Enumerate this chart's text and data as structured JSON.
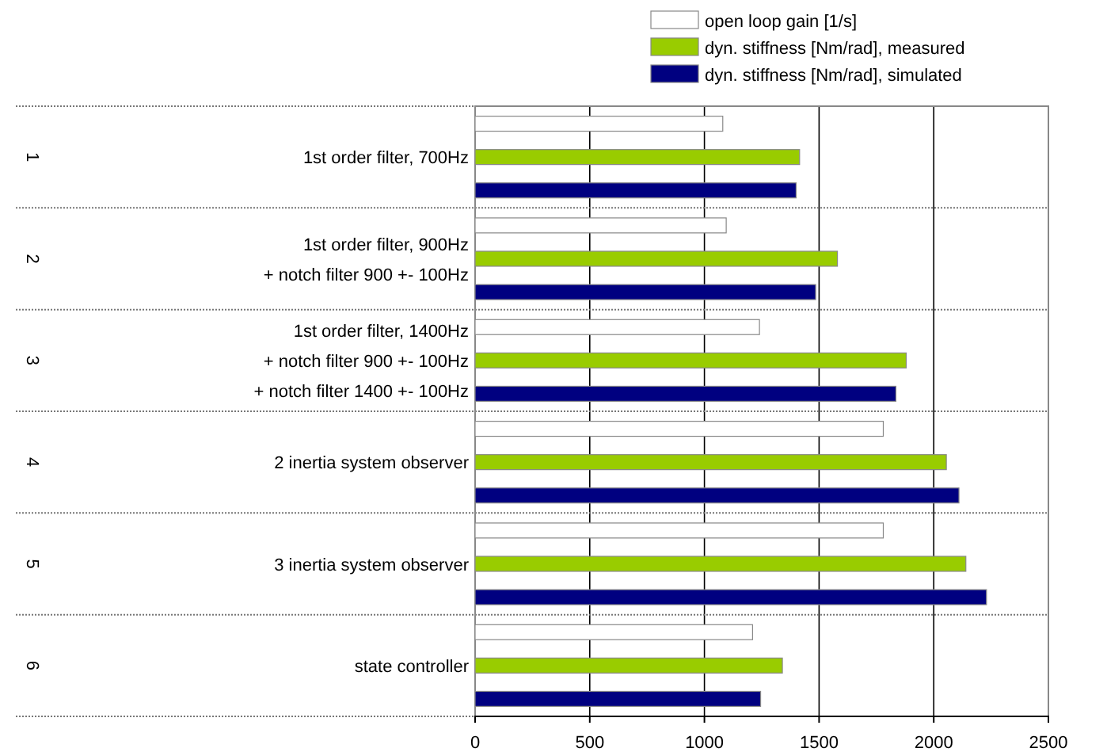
{
  "chart_data": {
    "type": "bar",
    "orientation": "horizontal",
    "categories": [
      "1st order filter, 700Hz",
      "1st order filter, 900Hz\n+ notch filter 900 +- 100Hz",
      "1st order filter, 1400Hz\n+ notch filter 900 +- 100Hz\n+ notch filter 1400 +- 100Hz",
      "2 inertia system observer",
      "3 inertia system observer",
      "state controller"
    ],
    "series": [
      {
        "name": "open loop gain [1/s]",
        "color": "#ffffff",
        "values": [
          1080,
          1095,
          1240,
          1780,
          1780,
          1210
        ]
      },
      {
        "name": "dyn. stiffness [Nm/rad], measured",
        "color": "#99cc00",
        "values": [
          1415,
          1580,
          1880,
          2055,
          2140,
          1340
        ]
      },
      {
        "name": "dyn. stiffness [Nm/rad], simulated",
        "color": "#000080",
        "values": [
          1400,
          1485,
          1835,
          2110,
          2230,
          1245
        ]
      }
    ],
    "annotations": [
      "1",
      "2",
      "3",
      "4",
      "5",
      "6"
    ],
    "xlim": [
      0,
      2500
    ],
    "xticks": [
      0,
      500,
      1000,
      1500,
      2000,
      2500
    ],
    "grid": "x",
    "legend": "top right"
  }
}
